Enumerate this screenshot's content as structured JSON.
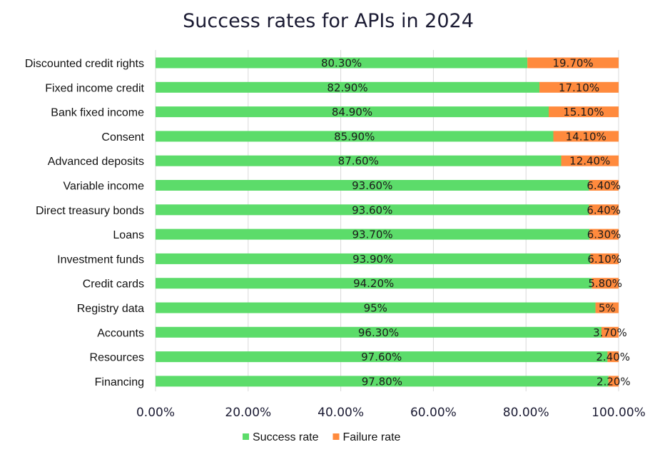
{
  "chart_data": {
    "type": "bar",
    "orientation": "horizontal",
    "stacked": true,
    "title": "Success rates for APIs in 2024",
    "categories": [
      "Discounted credit rights",
      "Fixed income credit",
      "Bank fixed income",
      "Consent",
      "Advanced deposits",
      "Variable income",
      "Direct treasury bonds",
      "Loans",
      "Investment funds",
      "Credit cards",
      "Registry data",
      "Accounts",
      "Resources",
      "Financing"
    ],
    "series": [
      {
        "name": "Success rate",
        "color": "#5cdc6a",
        "values": [
          80.3,
          82.9,
          84.9,
          85.9,
          87.6,
          93.6,
          93.6,
          93.7,
          93.9,
          94.2,
          95,
          96.3,
          97.6,
          97.8
        ],
        "labels": [
          "80.30%",
          "82.90%",
          "84.90%",
          "85.90%",
          "87.60%",
          "93.60%",
          "93.60%",
          "93.70%",
          "93.90%",
          "94.20%",
          "95%",
          "96.30%",
          "97.60%",
          "97.80%"
        ]
      },
      {
        "name": "Failure rate",
        "color": "#ff8a3d",
        "values": [
          19.7,
          17.1,
          15.1,
          14.1,
          12.4,
          6.4,
          6.4,
          6.3,
          6.1,
          5.8,
          5,
          3.7,
          2.4,
          2.2
        ],
        "labels": [
          "19.70%",
          "17.10%",
          "15.10%",
          "14.10%",
          "12.40%",
          "6.40%",
          "6.40%",
          "6.30%",
          "6.10%",
          "5.80%",
          "5%",
          "3.70%",
          "2.40%",
          "2.20%"
        ]
      }
    ],
    "xlim": [
      0,
      100
    ],
    "xticks": [
      "0.00%",
      "20.00%",
      "40.00%",
      "60.00%",
      "80.00%",
      "100.00%"
    ],
    "grid": true,
    "legend_position": "bottom"
  }
}
